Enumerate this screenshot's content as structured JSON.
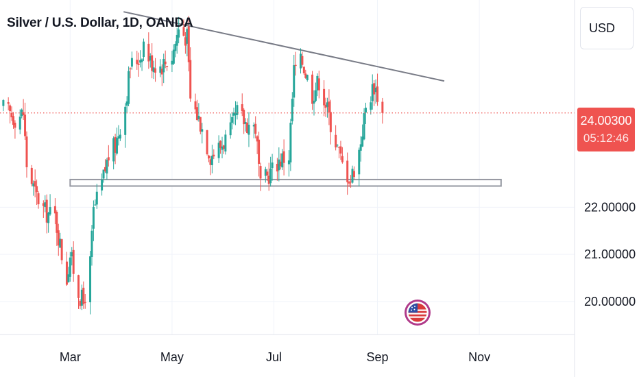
{
  "title": "Silver / U.S. Dollar, 1D, OANDA",
  "currency_button": "USD",
  "last_price_label": "24.00300",
  "countdown": "05:12:46",
  "colors": {
    "up": "#26a69a",
    "down": "#ef5350",
    "trendline": "#787b86",
    "support": "#9598a1",
    "grid": "#f0f3fa",
    "axis_text": "#131722"
  },
  "icons": [
    "us-flag-icon"
  ],
  "chart_data": {
    "type": "candlestick",
    "title": "Silver / U.S. Dollar, 1D, OANDA",
    "x_ticks": [
      "Mar",
      "May",
      "Jul",
      "Sep",
      "Nov"
    ],
    "y_ticks": [
      "20.00000",
      "21.00000",
      "22.00000"
    ],
    "ylim": [
      19.3,
      26.4
    ],
    "last_price": 24.003,
    "points": [
      [
        "2023-01-20",
        24.1
      ],
      [
        "2023-01-27",
        23.9
      ],
      [
        "2023-02-01",
        24.0
      ],
      [
        "2023-02-03",
        22.9
      ],
      [
        "2023-02-08",
        22.3
      ],
      [
        "2023-02-14",
        21.9
      ],
      [
        "2023-02-20",
        21.8
      ],
      [
        "2023-02-24",
        21.0
      ],
      [
        "2023-02-27",
        20.5
      ],
      [
        "2023-03-01",
        21.0
      ],
      [
        "2023-03-06",
        20.2
      ],
      [
        "2023-03-09",
        19.95
      ],
      [
        "2023-03-13",
        20.8
      ],
      [
        "2023-03-15",
        21.9
      ],
      [
        "2023-03-20",
        22.5
      ],
      [
        "2023-03-24",
        23.1
      ],
      [
        "2023-03-28",
        23.3
      ],
      [
        "2023-04-03",
        24.2
      ],
      [
        "2023-04-06",
        25.0
      ],
      [
        "2023-04-12",
        25.2
      ],
      [
        "2023-04-14",
        25.5
      ],
      [
        "2023-04-18",
        25.1
      ],
      [
        "2023-04-24",
        25.0
      ],
      [
        "2023-05-01",
        25.2
      ],
      [
        "2023-05-05",
        25.8
      ],
      [
        "2023-05-10",
        25.6
      ],
      [
        "2023-05-12",
        24.3
      ],
      [
        "2023-05-18",
        23.8
      ],
      [
        "2023-05-24",
        23.1
      ],
      [
        "2023-05-30",
        23.3
      ],
      [
        "2023-06-05",
        23.6
      ],
      [
        "2023-06-09",
        24.0
      ],
      [
        "2023-06-14",
        23.8
      ],
      [
        "2023-06-20",
        23.7
      ],
      [
        "2023-06-23",
        22.4
      ],
      [
        "2023-06-26",
        22.6
      ],
      [
        "2023-06-30",
        22.8
      ],
      [
        "2023-07-04",
        23.0
      ],
      [
        "2023-07-10",
        23.1
      ],
      [
        "2023-07-13",
        24.9
      ],
      [
        "2023-07-18",
        25.1
      ],
      [
        "2023-07-24",
        24.4
      ],
      [
        "2023-07-28",
        24.7
      ],
      [
        "2023-08-01",
        24.2
      ],
      [
        "2023-08-07",
        23.4
      ],
      [
        "2023-08-11",
        22.9
      ],
      [
        "2023-08-16",
        22.6
      ],
      [
        "2023-08-21",
        23.2
      ],
      [
        "2023-08-25",
        24.1
      ],
      [
        "2023-08-30",
        24.6
      ],
      [
        "2023-09-01",
        24.4
      ],
      [
        "2023-09-04",
        24.0
      ]
    ],
    "drawings": {
      "trendline": {
        "start": [
          "2023-04-02",
          26.15
        ],
        "end": [
          "2023-10-11",
          24.68
        ]
      },
      "support_zone": {
        "low": 22.48,
        "high": 22.56,
        "start": "2023-03-01",
        "end": "2023-11-14"
      }
    },
    "axes": {
      "x": {
        "type": "date",
        "range": [
          "2023-01-18",
          "2023-12-28"
        ]
      },
      "price_scale": "right"
    }
  }
}
